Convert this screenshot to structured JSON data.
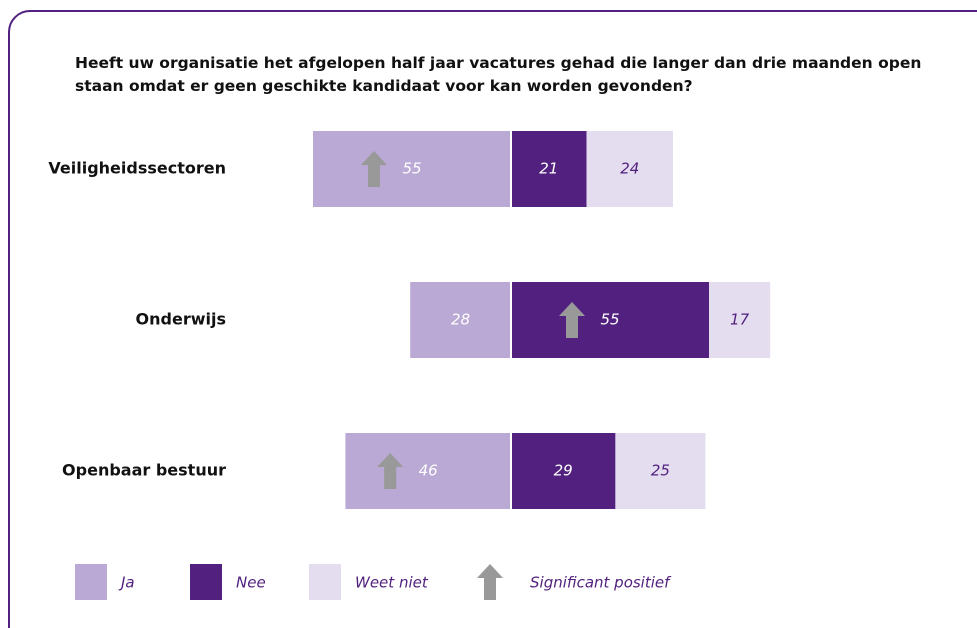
{
  "chart_data": {
    "type": "diverging_bar",
    "title": "Heeft uw organisatie het afgelopen half jaar vacatures gehad die langer dan drie maanden open staan omdat er geen geschikte kandidaat voor kan worden gevonden?",
    "categories": [
      "Veiligheidssectoren",
      "Onderwijs",
      "Openbaar bestuur"
    ],
    "series": [
      {
        "name": "Ja",
        "color": "#b9a9d4",
        "label_color": "#ffffff",
        "side": "left",
        "values": [
          55,
          28,
          46
        ],
        "significant": [
          true,
          false,
          true
        ]
      },
      {
        "name": "Nee",
        "color": "#52217f",
        "label_color": "#ffffff",
        "side": "right",
        "values": [
          21,
          55,
          29
        ],
        "significant": [
          false,
          true,
          false
        ]
      },
      {
        "name": "Weet niet",
        "color": "#e4dcef",
        "label_color": "#52217f",
        "side": "right",
        "values": [
          24,
          17,
          25
        ],
        "significant": [
          false,
          false,
          false
        ]
      }
    ],
    "significance_label": "Significant positief",
    "significance_color": "#999999"
  }
}
